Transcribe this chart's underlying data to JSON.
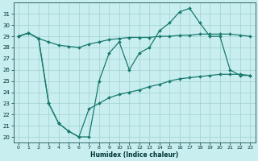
{
  "xlabel": "Humidex (Indice chaleur)",
  "bg_color": "#c8eef0",
  "grid_color": "#a0d0cc",
  "line_color": "#1a7a6e",
  "xlim": [
    -0.5,
    23.5
  ],
  "ylim": [
    19.5,
    32.0
  ],
  "yticks": [
    20,
    21,
    22,
    23,
    24,
    25,
    26,
    27,
    28,
    29,
    30,
    31
  ],
  "xticks": [
    0,
    1,
    2,
    3,
    4,
    5,
    6,
    7,
    8,
    9,
    10,
    11,
    12,
    13,
    14,
    15,
    16,
    17,
    18,
    19,
    20,
    21,
    22,
    23
  ],
  "series": [
    {
      "x": [
        0,
        1,
        2,
        3,
        4,
        5,
        6,
        7,
        8,
        9,
        10,
        11,
        12,
        13,
        14,
        15,
        16,
        17,
        18,
        19,
        20,
        21,
        22,
        23
      ],
      "y": [
        29,
        29.3,
        28.8,
        28.5,
        28.2,
        28.1,
        28.0,
        28.3,
        28.5,
        28.7,
        28.8,
        28.9,
        28.9,
        28.9,
        29.0,
        29.0,
        29.1,
        29.1,
        29.2,
        29.2,
        29.2,
        29.2,
        29.1,
        29.0
      ]
    },
    {
      "x": [
        0,
        1,
        2,
        3,
        4,
        5,
        6,
        7,
        8,
        9,
        10,
        11,
        12,
        13,
        14,
        15,
        16,
        17,
        18,
        19,
        20,
        21,
        22,
        23
      ],
      "y": [
        29,
        29.3,
        28.8,
        23.0,
        21.2,
        20.5,
        20.0,
        20.0,
        25.0,
        27.5,
        28.5,
        26.0,
        27.5,
        28.0,
        29.5,
        30.2,
        31.2,
        31.5,
        30.2,
        29.0,
        29.0,
        26.0,
        25.5,
        25.5
      ]
    },
    {
      "x": [
        0,
        1,
        2,
        3,
        4,
        5,
        6,
        7,
        8,
        9,
        10,
        11,
        12,
        13,
        14,
        15,
        16,
        17,
        18,
        19,
        20,
        21,
        22,
        23
      ],
      "y": [
        29,
        29.3,
        28.8,
        23.0,
        21.2,
        20.5,
        20.0,
        22.5,
        23.0,
        23.5,
        23.8,
        24.0,
        24.2,
        24.5,
        24.7,
        25.0,
        25.2,
        25.3,
        25.4,
        25.5,
        25.6,
        25.6,
        25.6,
        25.5
      ]
    }
  ]
}
